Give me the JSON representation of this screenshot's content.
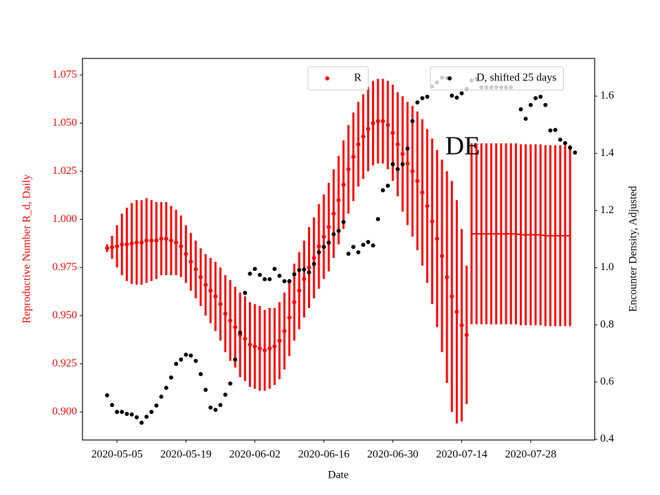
{
  "chart_data": {
    "type": "errorbar",
    "xlabel": "Date",
    "ylabel": "Reproductive Number R_d, Daily",
    "y2label": "Encounter Density, Adjusted",
    "annotation": "DE",
    "xlim": [
      "2020-04-28",
      "2020-08-10"
    ],
    "xticks": [
      "2020-05-05",
      "2020-05-19",
      "2020-06-02",
      "2020-06-16",
      "2020-06-30",
      "2020-07-14",
      "2020-07-28"
    ],
    "ylim": [
      0.8854,
      1.0836
    ],
    "yticks": [
      {
        "value": 0.9,
        "label": "0.900"
      },
      {
        "value": 0.925,
        "label": "0.925"
      },
      {
        "value": 0.95,
        "label": "0.950"
      },
      {
        "value": 0.975,
        "label": "0.975"
      },
      {
        "value": 1.0,
        "label": "1.000"
      },
      {
        "value": 1.025,
        "label": "1.025"
      },
      {
        "value": 1.05,
        "label": "1.050"
      },
      {
        "value": 1.075,
        "label": "1.075"
      }
    ],
    "y2lim": [
      0.3976,
      1.732
    ],
    "y2ticks": [
      {
        "value": 0.4,
        "label": "0.4"
      },
      {
        "value": 0.6,
        "label": "0.6"
      },
      {
        "value": 0.8,
        "label": "0.8"
      },
      {
        "value": 1.0,
        "label": "1.0"
      },
      {
        "value": 1.2,
        "label": "1.2"
      },
      {
        "value": 1.4,
        "label": "1.4"
      },
      {
        "value": 1.6,
        "label": "1.6"
      }
    ],
    "ylabel_color": "#ff0000",
    "series": [
      {
        "name": "R",
        "color": "#ff0000",
        "marker": true,
        "legend": "upper center",
        "x": [
          "2020-05-03",
          "2020-05-04",
          "2020-05-05",
          "2020-05-06",
          "2020-05-07",
          "2020-05-08",
          "2020-05-09",
          "2020-05-10",
          "2020-05-11",
          "2020-05-12",
          "2020-05-13",
          "2020-05-14",
          "2020-05-15",
          "2020-05-16",
          "2020-05-17",
          "2020-05-18",
          "2020-05-19",
          "2020-05-20",
          "2020-05-21",
          "2020-05-22",
          "2020-05-23",
          "2020-05-24",
          "2020-05-25",
          "2020-05-26",
          "2020-05-27",
          "2020-05-28",
          "2020-05-29",
          "2020-05-30",
          "2020-05-31",
          "2020-06-01",
          "2020-06-02",
          "2020-06-03",
          "2020-06-04",
          "2020-06-05",
          "2020-06-06",
          "2020-06-07",
          "2020-06-08",
          "2020-06-09",
          "2020-06-10",
          "2020-06-11",
          "2020-06-12",
          "2020-06-13",
          "2020-06-14",
          "2020-06-15",
          "2020-06-16",
          "2020-06-17",
          "2020-06-18",
          "2020-06-19",
          "2020-06-20",
          "2020-06-21",
          "2020-06-22",
          "2020-06-23",
          "2020-06-24",
          "2020-06-25",
          "2020-06-26",
          "2020-06-27",
          "2020-06-28",
          "2020-06-29",
          "2020-06-30",
          "2020-07-01",
          "2020-07-02",
          "2020-07-03",
          "2020-07-04",
          "2020-07-05",
          "2020-07-06",
          "2020-07-07",
          "2020-07-08",
          "2020-07-09",
          "2020-07-10",
          "2020-07-11",
          "2020-07-12",
          "2020-07-13",
          "2020-07-14",
          "2020-07-15"
        ],
        "values": [
          0.985,
          0.9855,
          0.986,
          0.987,
          0.987,
          0.9875,
          0.988,
          0.988,
          0.989,
          0.989,
          0.989,
          0.99,
          0.99,
          0.989,
          0.988,
          0.986,
          0.982,
          0.978,
          0.974,
          0.97,
          0.966,
          0.963,
          0.96,
          0.956,
          0.951,
          0.9475,
          0.944,
          0.94,
          0.938,
          0.935,
          0.934,
          0.933,
          0.932,
          0.933,
          0.934,
          0.937,
          0.942,
          0.949,
          0.957,
          0.963,
          0.969,
          0.975,
          0.98,
          0.986,
          0.991,
          0.996,
          1.003,
          1.01,
          1.018,
          1.026,
          1.0325,
          1.039,
          1.043,
          1.047,
          1.05,
          1.051,
          1.051,
          1.049,
          1.045,
          1.039,
          1.034,
          1.029,
          1.025,
          1.02,
          1.014,
          1.007,
          0.999,
          0.99,
          0.981,
          0.97,
          0.96,
          0.952,
          0.945,
          0.94
        ],
        "errors": [
          0.002,
          0.006,
          0.011,
          0.016,
          0.019,
          0.021,
          0.022,
          0.022,
          0.022,
          0.021,
          0.02,
          0.019,
          0.019,
          0.018,
          0.017,
          0.016,
          0.015,
          0.015,
          0.015,
          0.015,
          0.016,
          0.017,
          0.018,
          0.019,
          0.02,
          0.021,
          0.021,
          0.022,
          0.022,
          0.022,
          0.022,
          0.022,
          0.021,
          0.021,
          0.02,
          0.02,
          0.02,
          0.02,
          0.02,
          0.02,
          0.02,
          0.021,
          0.021,
          0.022,
          0.022,
          0.023,
          0.023,
          0.023,
          0.023,
          0.023,
          0.023,
          0.022,
          0.022,
          0.022,
          0.022,
          0.022,
          0.022,
          0.023,
          0.025,
          0.027,
          0.03,
          0.032,
          0.034,
          0.036,
          0.038,
          0.04,
          0.043,
          0.046,
          0.05,
          0.055,
          0.06,
          0.058,
          0.05,
          0.036
        ]
      },
      {
        "color": "#ff0000",
        "marker": false,
        "x": [
          "2020-07-16",
          "2020-07-17",
          "2020-07-18",
          "2020-07-19",
          "2020-07-20",
          "2020-07-21",
          "2020-07-22",
          "2020-07-23",
          "2020-07-24",
          "2020-07-25",
          "2020-07-26",
          "2020-07-27",
          "2020-07-28",
          "2020-07-29",
          "2020-07-30",
          "2020-07-31",
          "2020-08-01",
          "2020-08-02",
          "2020-08-03",
          "2020-08-04",
          "2020-08-05"
        ],
        "values": [
          0.9925,
          0.9925,
          0.9925,
          0.9925,
          0.9925,
          0.9925,
          0.9925,
          0.9925,
          0.9925,
          0.9925,
          0.992,
          0.992,
          0.992,
          0.992,
          0.992,
          0.9915,
          0.9915,
          0.9915,
          0.9915,
          0.9915,
          0.9915
        ],
        "errors": [
          0.047,
          0.047,
          0.047,
          0.047,
          0.047,
          0.047,
          0.047,
          0.047,
          0.047,
          0.047,
          0.047,
          0.047,
          0.047,
          0.047,
          0.047,
          0.047,
          0.047,
          0.047,
          0.047,
          0.047,
          0.047
        ]
      },
      {
        "name": "D, shifted 25 days",
        "color": "#000000",
        "marker": true,
        "axis": "y2",
        "legend": "upper right",
        "x": [
          "2020-05-03",
          "2020-05-04",
          "2020-05-05",
          "2020-05-06",
          "2020-05-07",
          "2020-05-08",
          "2020-05-09",
          "2020-05-10",
          "2020-05-11",
          "2020-05-12",
          "2020-05-13",
          "2020-05-14",
          "2020-05-15",
          "2020-05-16",
          "2020-05-17",
          "2020-05-18",
          "2020-05-19",
          "2020-05-20",
          "2020-05-21",
          "2020-05-22",
          "2020-05-23",
          "2020-05-24",
          "2020-05-25",
          "2020-05-26",
          "2020-05-27",
          "2020-05-28",
          "2020-05-29",
          "2020-05-30",
          "2020-05-31",
          "2020-06-01",
          "2020-06-02",
          "2020-06-03",
          "2020-06-04",
          "2020-06-05",
          "2020-06-06",
          "2020-06-07",
          "2020-06-08",
          "2020-06-09",
          "2020-06-10",
          "2020-06-11",
          "2020-06-12",
          "2020-06-13",
          "2020-06-14",
          "2020-06-15",
          "2020-06-16",
          "2020-06-17",
          "2020-06-18",
          "2020-06-19",
          "2020-06-20",
          "2020-06-21",
          "2020-06-22",
          "2020-06-23",
          "2020-06-24",
          "2020-06-25",
          "2020-06-26",
          "2020-06-27",
          "2020-06-28",
          "2020-06-29",
          "2020-06-30",
          "2020-07-01",
          "2020-07-02",
          "2020-07-03",
          "2020-07-04",
          "2020-07-05",
          "2020-07-06",
          "2020-07-07",
          "2020-07-08",
          "2020-07-09",
          "2020-07-10",
          "2020-07-11",
          "2020-07-12",
          "2020-07-13",
          "2020-07-14",
          "2020-07-15",
          "2020-07-16",
          "2020-07-17",
          "2020-07-18",
          "2020-07-19",
          "2020-07-20",
          "2020-07-21",
          "2020-07-22",
          "2020-07-23",
          "2020-07-24",
          "2020-07-25",
          "2020-07-26",
          "2020-07-27",
          "2020-07-28",
          "2020-07-29",
          "2020-07-30",
          "2020-07-31",
          "2020-08-01",
          "2020-08-02",
          "2020-08-03",
          "2020-08-04",
          "2020-08-05",
          "2020-08-06"
        ],
        "values": [
          0.554,
          0.52,
          0.496,
          0.496,
          0.489,
          0.487,
          0.477,
          0.458,
          0.479,
          0.496,
          0.518,
          0.549,
          0.58,
          0.616,
          0.664,
          0.679,
          0.696,
          0.693,
          0.674,
          0.628,
          0.573,
          0.511,
          0.503,
          0.52,
          0.556,
          0.595,
          0.679,
          0.773,
          0.912,
          0.979,
          0.996,
          0.975,
          0.96,
          0.96,
          0.996,
          0.972,
          0.953,
          0.953,
          0.977,
          0.992,
          0.994,
          0.984,
          1.013,
          1.054,
          1.073,
          1.088,
          1.117,
          1.129,
          1.16,
          1.049,
          1.073,
          1.054,
          1.08,
          1.09,
          1.078,
          1.17,
          1.271,
          1.287,
          1.362,
          1.345,
          1.362,
          1.417,
          1.513,
          1.578,
          1.593,
          1.598,
          1.634,
          1.648,
          1.665,
          1.663,
          1.602,
          1.595,
          1.61,
          1.626,
          1.655,
          1.66,
          1.631,
          1.631,
          1.631,
          1.631,
          1.631,
          1.631,
          1.631,
          null,
          1.554,
          1.521,
          1.569,
          1.593,
          1.598,
          1.569,
          1.48,
          1.482,
          1.448,
          1.436,
          1.42,
          1.403
        ]
      }
    ]
  }
}
